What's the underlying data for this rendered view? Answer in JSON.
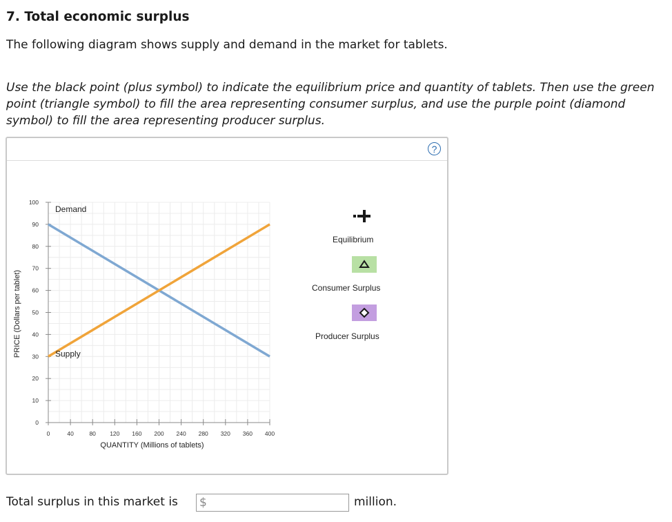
{
  "question": {
    "title": "7. Total economic surplus",
    "intro": "The following diagram shows supply and demand in the market for tablets.",
    "instructions": "Use the black point (plus symbol) to indicate the equilibrium price and quantity of tablets. Then use the green point (triangle symbol) to fill the area representing consumer surplus, and use the purple point (diamond symbol) to fill the area representing producer surplus."
  },
  "panel": {
    "help_label": "?"
  },
  "chart_data": {
    "type": "line",
    "xlabel": "QUANTITY (Millions of tablets)",
    "ylabel": "PRICE (Dollars per tablet)",
    "xlim": [
      0,
      400
    ],
    "ylim": [
      0,
      100
    ],
    "x_ticks": [
      0,
      40,
      80,
      120,
      160,
      200,
      240,
      280,
      320,
      360,
      400
    ],
    "y_ticks": [
      0,
      10,
      20,
      30,
      40,
      50,
      60,
      70,
      80,
      90,
      100
    ],
    "grid": true,
    "series": [
      {
        "name": "Demand",
        "color": "#7fa8d2",
        "x": [
          0,
          400
        ],
        "y": [
          90,
          30
        ]
      },
      {
        "name": "Supply",
        "color": "#f0a43a",
        "x": [
          0,
          400
        ],
        "y": [
          30,
          90
        ]
      }
    ]
  },
  "tools": [
    {
      "label": "Equilibrium",
      "icon": "plus-icon",
      "color": "#1a1a1a"
    },
    {
      "label": "Consumer Surplus",
      "icon": "triangle-icon",
      "color": "#b8e0a4"
    },
    {
      "label": "Producer Surplus",
      "icon": "diamond-icon",
      "color": "#c39ee0"
    }
  ],
  "answer": {
    "prefix": "Total surplus in this market is",
    "currency": "$",
    "value": "",
    "suffix": "million."
  }
}
